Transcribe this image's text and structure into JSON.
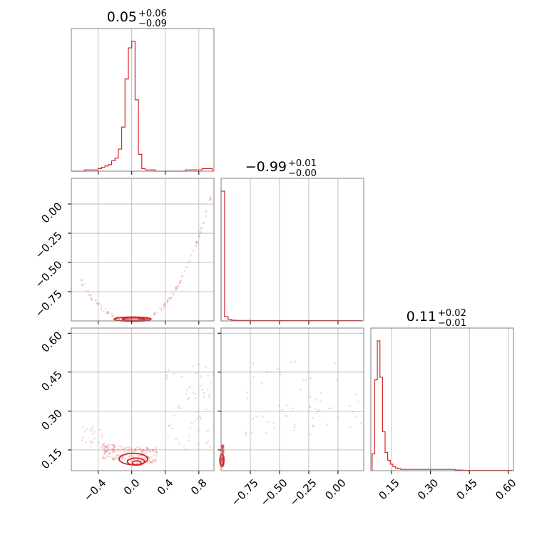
{
  "colors": {
    "series": "#d62728",
    "grid": "#b0b0b0",
    "frame": "#808080"
  },
  "chart_data": [
    {
      "type": "histogram",
      "panel": "param-1",
      "title": {
        "value": "0.05",
        "upper": "+0.06",
        "lower": "−0.09"
      },
      "xlim": [
        -0.72,
        0.98
      ],
      "grid": true,
      "bins": [
        -0.72,
        -0.68,
        -0.64,
        -0.6,
        -0.56,
        -0.52,
        -0.48,
        -0.44,
        -0.4,
        -0.36,
        -0.32,
        -0.28,
        -0.24,
        -0.2,
        -0.16,
        -0.12,
        -0.08,
        -0.04,
        0.0,
        0.04,
        0.08,
        0.12,
        0.16,
        0.2,
        0.24,
        0.28,
        0.32,
        0.36,
        0.4,
        0.44,
        0.48,
        0.52,
        0.56,
        0.6,
        0.64,
        0.68,
        0.72,
        0.76,
        0.8,
        0.84,
        0.88,
        0.92,
        0.96
      ],
      "values": [
        0,
        0,
        0,
        0,
        0.01,
        0.01,
        0.01,
        0.01,
        0.02,
        0.03,
        0.04,
        0.05,
        0.08,
        0.1,
        0.17,
        0.34,
        0.71,
        0.95,
        1.0,
        0.55,
        0.13,
        0.02,
        0.01,
        0.01,
        0.01,
        0,
        0,
        0,
        0,
        0,
        0,
        0,
        0,
        0,
        0.01,
        0.01,
        0.01,
        0.01,
        0.01,
        0.02,
        0.02,
        0.02
      ]
    },
    {
      "type": "scatter",
      "panel": "param-2-vs-1",
      "xlim": [
        -0.72,
        0.98
      ],
      "ylim": [
        -1.0,
        0.22
      ],
      "yticks": [
        "0.00",
        "−0.25",
        "−0.50",
        "−0.75"
      ],
      "grid": true
    },
    {
      "type": "histogram",
      "panel": "param-2",
      "title": {
        "value": "−0.99",
        "upper": "+0.01",
        "lower": "−0.00"
      },
      "xlim": [
        -1.0,
        0.22
      ],
      "grid": true,
      "bins": [
        -1.0,
        -0.97,
        -0.94,
        -0.91,
        -0.88,
        -0.85,
        -0.82,
        -0.79,
        -0.76,
        -0.73,
        -0.7,
        -0.67,
        -0.64,
        -0.61,
        -0.58,
        -0.55,
        -0.52,
        -0.49,
        -0.46,
        -0.43,
        -0.4,
        -0.37,
        -0.34,
        -0.31,
        -0.28,
        -0.25,
        -0.22,
        -0.19,
        -0.16,
        -0.13,
        -0.1,
        -0.07,
        -0.04,
        -0.01,
        0.02,
        0.05,
        0.08,
        0.11,
        0.14,
        0.17,
        0.2
      ],
      "values": [
        0.9,
        0.03,
        0.01,
        0.005,
        0.004,
        0.003,
        0.003,
        0.003,
        0.003,
        0.002,
        0.002,
        0.002,
        0.002,
        0.002,
        0.002,
        0.002,
        0.002,
        0.002,
        0.002,
        0.002,
        0.002,
        0.002,
        0.002,
        0.002,
        0.002,
        0.002,
        0.002,
        0.002,
        0.002,
        0.002,
        0.002,
        0.002,
        0.002,
        0.002,
        0.002,
        0.002,
        0.002,
        0.002,
        0.002,
        0.002
      ]
    },
    {
      "type": "scatter",
      "panel": "param-3-vs-1",
      "xlim": [
        -0.72,
        0.98
      ],
      "ylim": [
        0.07,
        0.62
      ],
      "xticks": [
        "−0.4",
        "0.0",
        "0.4",
        "0.8"
      ],
      "yticks": [
        "0.60",
        "0.45",
        "0.30",
        "0.15"
      ],
      "grid": true
    },
    {
      "type": "scatter",
      "panel": "param-3-vs-2",
      "xlim": [
        -1.0,
        0.22
      ],
      "ylim": [
        0.07,
        0.62
      ],
      "xticks": [
        "−0.75",
        "−0.50",
        "−0.25",
        "0.00"
      ],
      "grid": true
    },
    {
      "type": "histogram",
      "panel": "param-3",
      "title": {
        "value": "0.11",
        "upper": "+0.02",
        "lower": "−0.01"
      },
      "xlim": [
        0.07,
        0.62
      ],
      "xticks": [
        "0.15",
        "0.30",
        "0.45",
        "0.60"
      ],
      "grid": true,
      "bins": [
        0.075,
        0.085,
        0.095,
        0.105,
        0.115,
        0.125,
        0.135,
        0.145,
        0.155,
        0.165,
        0.175,
        0.185,
        0.195,
        0.205,
        0.215,
        0.225,
        0.235,
        0.245,
        0.255,
        0.265,
        0.275,
        0.285,
        0.295,
        0.305,
        0.315,
        0.325,
        0.335,
        0.345,
        0.355,
        0.365,
        0.375,
        0.385,
        0.395,
        0.405,
        0.415,
        0.425,
        0.435,
        0.445,
        0.455,
        0.465,
        0.475,
        0.485,
        0.495,
        0.505,
        0.515,
        0.525,
        0.535,
        0.545,
        0.555,
        0.565,
        0.575,
        0.585,
        0.595,
        0.605,
        0.615
      ],
      "values": [
        0.13,
        0.7,
        1.0,
        0.72,
        0.3,
        0.14,
        0.08,
        0.05,
        0.03,
        0.02,
        0.015,
        0.01,
        0.01,
        0.01,
        0.01,
        0.01,
        0.01,
        0.01,
        0.01,
        0.01,
        0.01,
        0.01,
        0.01,
        0.01,
        0.01,
        0.01,
        0.01,
        0.01,
        0.01,
        0.01,
        0.01,
        0.01,
        0.005,
        0.005,
        0.004,
        0.003,
        0.002,
        0.002,
        0.002,
        0.002,
        0.002,
        0.002,
        0.002,
        0.002,
        0.002,
        0.002,
        0.002,
        0.002,
        0.002,
        0.002,
        0.002,
        0.002,
        0.002,
        0.002
      ]
    }
  ]
}
